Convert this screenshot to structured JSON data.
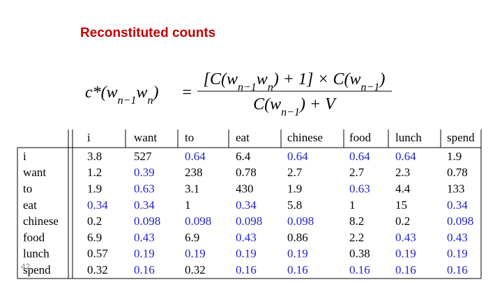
{
  "title": "Reconstituted counts",
  "formula": {
    "lhs": [
      {
        "text": "c*(w"
      },
      {
        "text": "n−1",
        "sub": true
      },
      {
        "text": "w"
      },
      {
        "text": "n",
        "sub": true
      },
      {
        "text": ")"
      }
    ],
    "equals": "=",
    "numerator": [
      {
        "text": "[C(w"
      },
      {
        "text": "n−1",
        "sub": true
      },
      {
        "text": "w"
      },
      {
        "text": "n",
        "sub": true
      },
      {
        "text": ") + 1] × C(w"
      },
      {
        "text": "n−1",
        "sub": true
      },
      {
        "text": ")"
      }
    ],
    "denominator": [
      {
        "text": "C(w"
      },
      {
        "text": "n−1",
        "sub": true
      },
      {
        "text": ") + V"
      }
    ]
  },
  "table": {
    "header": [
      "i",
      "want",
      "to",
      "eat",
      "chinese",
      "food",
      "lunch",
      "spend"
    ],
    "highlight_color": "#2323c8",
    "rows": [
      {
        "label": "i",
        "values": [
          3.8,
          527,
          0.64,
          6.4,
          0.64,
          0.64,
          0.64,
          1.9
        ],
        "highlight": [
          false,
          false,
          true,
          false,
          true,
          true,
          true,
          false
        ]
      },
      {
        "label": "want",
        "values": [
          1.2,
          0.39,
          238,
          0.78,
          2.7,
          2.7,
          2.3,
          0.78
        ],
        "highlight": [
          false,
          true,
          false,
          false,
          false,
          false,
          false,
          false
        ]
      },
      {
        "label": "to",
        "values": [
          1.9,
          0.63,
          3.1,
          430,
          1.9,
          0.63,
          4.4,
          133
        ],
        "highlight": [
          false,
          true,
          false,
          false,
          false,
          true,
          false,
          false
        ]
      },
      {
        "label": "eat",
        "values": [
          0.34,
          0.34,
          1,
          0.34,
          5.8,
          1,
          15,
          0.34
        ],
        "highlight": [
          true,
          true,
          false,
          true,
          false,
          false,
          false,
          true
        ]
      },
      {
        "label": "chinese",
        "values": [
          0.2,
          0.098,
          0.098,
          0.098,
          0.098,
          8.2,
          0.2,
          0.098
        ],
        "highlight": [
          false,
          true,
          true,
          true,
          true,
          false,
          false,
          true
        ]
      },
      {
        "label": "food",
        "values": [
          6.9,
          0.43,
          6.9,
          0.43,
          0.86,
          2.2,
          0.43,
          0.43
        ],
        "highlight": [
          false,
          true,
          false,
          true,
          false,
          false,
          true,
          true
        ]
      },
      {
        "label": "lunch",
        "values": [
          0.57,
          0.19,
          0.19,
          0.19,
          0.19,
          0.38,
          0.19,
          0.19
        ],
        "highlight": [
          false,
          true,
          true,
          true,
          true,
          false,
          true,
          true
        ]
      },
      {
        "label": "spend",
        "values": [
          0.32,
          0.16,
          0.32,
          0.16,
          0.16,
          0.16,
          0.16,
          0.16
        ],
        "highlight": [
          false,
          true,
          false,
          true,
          true,
          true,
          true,
          true
        ]
      }
    ]
  },
  "slide_number": "42"
}
